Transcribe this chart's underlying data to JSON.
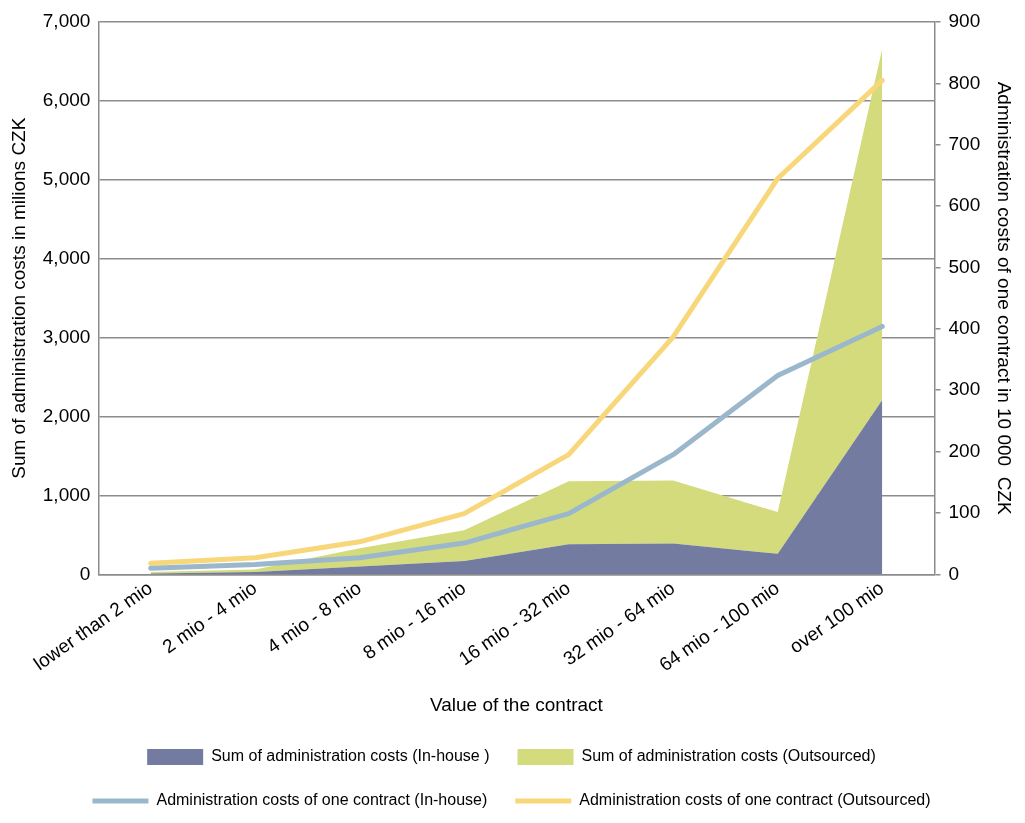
{
  "chart_data": {
    "type": "area",
    "xlabel": "Value of the contract",
    "ylabel": "Sum of administration costs in milions CZK",
    "y2label": "Administration costs of one contract in 10 000  CZK",
    "categories": [
      "lower than 2 mio",
      "2 mio - 4 mio",
      "4 mio - 8 mio",
      "8 mio - 16 mio",
      "16 mio - 32 mio",
      "32 mio - 64 mio",
      "64 mio - 100 mio",
      "over 100 mio"
    ],
    "stacked": true,
    "grid": "y",
    "legend": "bottom",
    "marker": "none",
    "ylim": [
      0,
      7000
    ],
    "yticks": [
      {
        "value": 0,
        "label": "0"
      },
      {
        "value": 1000,
        "label": "1,000"
      },
      {
        "value": 2000,
        "label": "2,000"
      },
      {
        "value": 3000,
        "label": "3,000"
      },
      {
        "value": 4000,
        "label": "4,000"
      },
      {
        "value": 5000,
        "label": "5,000"
      },
      {
        "value": 6000,
        "label": "6,000"
      },
      {
        "value": 7000,
        "label": "7,000"
      }
    ],
    "y2lim": [
      0,
      900
    ],
    "y2ticks": [
      0,
      100,
      200,
      300,
      400,
      500,
      600,
      700,
      800,
      900
    ],
    "series": [
      {
        "name": "Sum of administration costs (In-house )",
        "color": "#737ba0",
        "values": [
          10,
          30,
          100,
          170,
          380,
          390,
          260,
          2210
        ]
      },
      {
        "name": "Sum of administration costs (Outsourced)",
        "color": "#d4db7c",
        "values": [
          20,
          30,
          230,
          390,
          800,
          800,
          530,
          4450
        ]
      },
      {
        "name": "Administration costs of one contract (In-house)",
        "type": "line",
        "axis": "y2",
        "color": "#9bb7cc",
        "values": [
          10,
          16,
          27,
          51,
          99,
          195,
          324,
          404
        ]
      },
      {
        "name": "Administration costs of one contract (Outsourced)",
        "type": "line",
        "axis": "y2",
        "color": "#f8d77a",
        "values": [
          18,
          27,
          53,
          99,
          195,
          387,
          645,
          805
        ]
      }
    ]
  }
}
